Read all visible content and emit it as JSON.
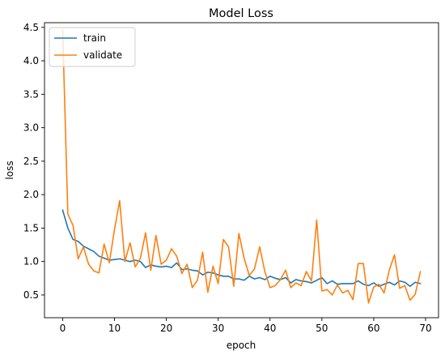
{
  "chart_data": {
    "type": "line",
    "title": "Model Loss",
    "xlabel": "epoch",
    "ylabel": "loss",
    "xlim": [
      -3.5,
      72.5
    ],
    "ylim": [
      0.16,
      4.57
    ],
    "xticks": [
      0,
      10,
      20,
      30,
      40,
      50,
      60,
      70
    ],
    "yticks": [
      0.5,
      1.0,
      1.5,
      2.0,
      2.5,
      3.0,
      3.5,
      4.0,
      4.5
    ],
    "ytick_labels": [
      "0.5",
      "1.0",
      "1.5",
      "2.0",
      "2.5",
      "3.0",
      "3.5",
      "4.0",
      "4.5"
    ],
    "grid": false,
    "legend_position": "top-left",
    "series": [
      {
        "name": "train",
        "color": "#1f77b4",
        "x": [
          0,
          1,
          2,
          3,
          4,
          5,
          6,
          7,
          8,
          9,
          10,
          11,
          12,
          13,
          14,
          15,
          16,
          17,
          18,
          19,
          20,
          21,
          22,
          23,
          24,
          25,
          26,
          27,
          28,
          29,
          30,
          31,
          32,
          33,
          34,
          35,
          36,
          37,
          38,
          39,
          40,
          41,
          42,
          43,
          44,
          45,
          46,
          47,
          48,
          49,
          50,
          51,
          52,
          53,
          54,
          55,
          56,
          57,
          58,
          59,
          60,
          61,
          62,
          63,
          64,
          65,
          66,
          67,
          68,
          69
        ],
        "values": [
          1.77,
          1.5,
          1.33,
          1.3,
          1.23,
          1.19,
          1.15,
          1.08,
          1.05,
          1.02,
          1.03,
          1.04,
          1.02,
          1.0,
          1.02,
          1.0,
          0.91,
          0.95,
          0.93,
          0.92,
          0.93,
          0.91,
          0.98,
          0.88,
          0.89,
          0.87,
          0.86,
          0.8,
          0.84,
          0.83,
          0.8,
          0.78,
          0.78,
          0.74,
          0.74,
          0.72,
          0.78,
          0.74,
          0.76,
          0.73,
          0.78,
          0.75,
          0.73,
          0.76,
          0.68,
          0.73,
          0.71,
          0.7,
          0.68,
          0.72,
          0.76,
          0.67,
          0.71,
          0.66,
          0.67,
          0.67,
          0.67,
          0.71,
          0.66,
          0.64,
          0.68,
          0.63,
          0.66,
          0.69,
          0.65,
          0.71,
          0.69,
          0.63,
          0.69,
          0.67
        ]
      },
      {
        "name": "validate",
        "color": "#ff7f0e",
        "x": [
          0,
          1,
          2,
          3,
          4,
          5,
          6,
          7,
          8,
          9,
          10,
          11,
          12,
          13,
          14,
          15,
          16,
          17,
          18,
          19,
          20,
          21,
          22,
          23,
          24,
          25,
          26,
          27,
          28,
          29,
          30,
          31,
          32,
          33,
          34,
          35,
          36,
          37,
          38,
          39,
          40,
          41,
          42,
          43,
          44,
          45,
          46,
          47,
          48,
          49,
          50,
          51,
          52,
          53,
          54,
          55,
          56,
          57,
          58,
          59,
          60,
          61,
          62,
          63,
          64,
          65,
          66,
          67,
          68,
          69
        ],
        "values": [
          4.47,
          1.71,
          1.54,
          1.04,
          1.22,
          0.96,
          0.86,
          0.83,
          1.26,
          0.98,
          1.48,
          1.91,
          1.0,
          1.28,
          0.92,
          1.05,
          1.43,
          0.87,
          1.39,
          0.96,
          1.02,
          1.19,
          1.08,
          0.82,
          0.96,
          0.61,
          0.72,
          1.14,
          0.54,
          0.93,
          0.67,
          1.33,
          1.22,
          0.63,
          1.42,
          1.05,
          0.79,
          0.89,
          1.22,
          0.85,
          0.61,
          0.64,
          0.73,
          0.87,
          0.61,
          0.68,
          0.64,
          0.85,
          0.71,
          1.62,
          0.56,
          0.58,
          0.5,
          0.65,
          0.53,
          0.57,
          0.43,
          0.97,
          0.97,
          0.38,
          0.62,
          0.66,
          0.53,
          0.87,
          1.1,
          0.6,
          0.64,
          0.42,
          0.51,
          0.85
        ]
      }
    ]
  }
}
